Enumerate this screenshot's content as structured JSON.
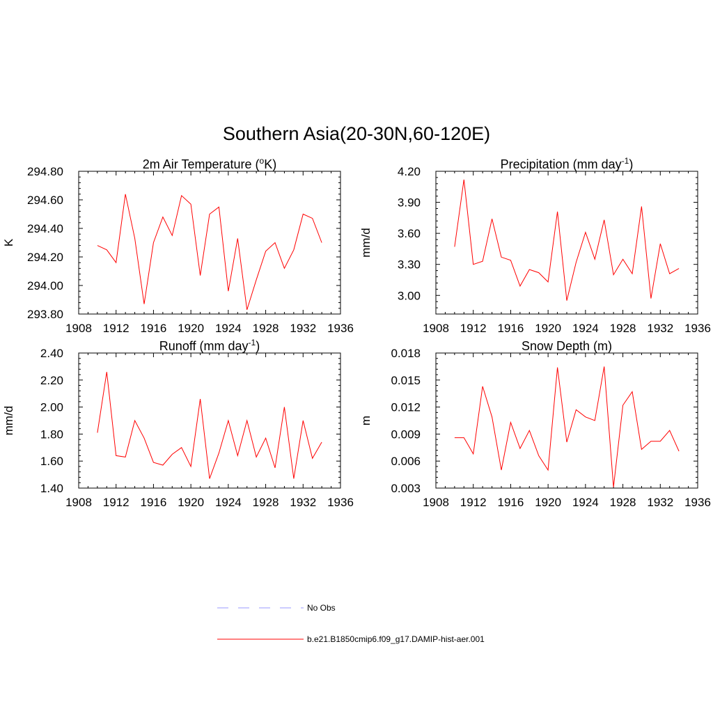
{
  "figure": {
    "title": "Southern Asia(20-30N,60-120E)"
  },
  "legend": {
    "items": [
      {
        "label": "No Obs",
        "color": "#9999ff",
        "style": "dashed"
      },
      {
        "label": "b.e21.B1850cmip6.f09_g17.DAMIP-hist-aer.001",
        "color": "#ff0000",
        "style": "solid"
      }
    ]
  },
  "chart_data": [
    {
      "type": "line",
      "title": "2m Air Temperature (",
      "title_super": "o",
      "title_tail": "K)",
      "ylabel": "K",
      "xlim": [
        1908,
        1936
      ],
      "ylim": [
        293.8,
        294.8
      ],
      "yticks": [
        293.8,
        294.0,
        294.2,
        294.4,
        294.6,
        294.8
      ],
      "ytick_labels": [
        "293.80",
        "294.00",
        "294.20",
        "294.40",
        "294.60",
        "294.80"
      ],
      "xticks": [
        1908,
        1912,
        1916,
        1920,
        1924,
        1928,
        1932,
        1936
      ],
      "xtick_labels": [
        "1908",
        "1912",
        "1916",
        "1920",
        "1924",
        "1928",
        "1932",
        "1936"
      ],
      "x": [
        1910,
        1911,
        1912,
        1913,
        1914,
        1915,
        1916,
        1917,
        1918,
        1919,
        1920,
        1921,
        1922,
        1923,
        1924,
        1925,
        1926,
        1927,
        1928,
        1929,
        1930,
        1931,
        1932,
        1933,
        1934
      ],
      "series": [
        {
          "color": "#ff0000",
          "values": [
            294.28,
            294.25,
            294.16,
            294.64,
            294.33,
            293.87,
            294.3,
            294.48,
            294.35,
            294.63,
            294.57,
            294.07,
            294.5,
            294.55,
            293.96,
            294.33,
            293.83,
            294.04,
            294.24,
            294.3,
            294.12,
            294.25,
            294.5,
            294.47,
            294.3
          ]
        }
      ]
    },
    {
      "type": "line",
      "title": "Precipitation (mm day",
      "title_super": "-1",
      "title_tail": ")",
      "ylabel": "mm/d",
      "xlim": [
        1908,
        1936
      ],
      "ylim": [
        2.82,
        4.2
      ],
      "yticks": [
        3.0,
        3.3,
        3.6,
        3.9,
        4.2
      ],
      "ytick_labels": [
        "3.00",
        "3.30",
        "3.60",
        "3.90",
        "4.20"
      ],
      "xticks": [
        1908,
        1912,
        1916,
        1920,
        1924,
        1928,
        1932,
        1936
      ],
      "xtick_labels": [
        "1908",
        "1912",
        "1916",
        "1920",
        "1924",
        "1928",
        "1932",
        "1936"
      ],
      "x": [
        1910,
        1911,
        1912,
        1913,
        1914,
        1915,
        1916,
        1917,
        1918,
        1919,
        1920,
        1921,
        1922,
        1923,
        1924,
        1925,
        1926,
        1927,
        1928,
        1929,
        1930,
        1931,
        1932,
        1933,
        1934
      ],
      "series": [
        {
          "color": "#ff0000",
          "values": [
            3.47,
            4.12,
            3.3,
            3.33,
            3.74,
            3.37,
            3.34,
            3.09,
            3.25,
            3.22,
            3.13,
            3.81,
            2.95,
            3.32,
            3.61,
            3.35,
            3.73,
            3.2,
            3.35,
            3.21,
            3.86,
            2.97,
            3.5,
            3.21,
            3.26
          ]
        }
      ]
    },
    {
      "type": "line",
      "title": "Runoff (mm day",
      "title_super": "-1",
      "title_tail": ")",
      "ylabel": "mm/d",
      "xlim": [
        1908,
        1936
      ],
      "ylim": [
        1.4,
        2.4
      ],
      "yticks": [
        1.4,
        1.6,
        1.8,
        2.0,
        2.2,
        2.4
      ],
      "ytick_labels": [
        "1.40",
        "1.60",
        "1.80",
        "2.00",
        "2.20",
        "2.40"
      ],
      "xticks": [
        1908,
        1912,
        1916,
        1920,
        1924,
        1928,
        1932,
        1936
      ],
      "xtick_labels": [
        "1908",
        "1912",
        "1916",
        "1920",
        "1924",
        "1928",
        "1932",
        "1936"
      ],
      "x": [
        1910,
        1911,
        1912,
        1913,
        1914,
        1915,
        1916,
        1917,
        1918,
        1919,
        1920,
        1921,
        1922,
        1923,
        1924,
        1925,
        1926,
        1927,
        1928,
        1929,
        1930,
        1931,
        1932,
        1933,
        1934
      ],
      "series": [
        {
          "color": "#ff0000",
          "values": [
            1.81,
            2.26,
            1.64,
            1.63,
            1.9,
            1.77,
            1.59,
            1.57,
            1.65,
            1.7,
            1.56,
            2.06,
            1.47,
            1.66,
            1.9,
            1.64,
            1.9,
            1.63,
            1.77,
            1.55,
            2.0,
            1.47,
            1.9,
            1.62,
            1.74
          ]
        }
      ]
    },
    {
      "type": "line",
      "title": "Snow Depth (m)",
      "title_super": "",
      "title_tail": "",
      "ylabel": "m",
      "xlim": [
        1908,
        1936
      ],
      "ylim": [
        0.003,
        0.018
      ],
      "yticks": [
        0.003,
        0.006,
        0.009,
        0.012,
        0.015,
        0.018
      ],
      "ytick_labels": [
        "0.003",
        "0.006",
        "0.009",
        "0.012",
        "0.015",
        "0.018"
      ],
      "xticks": [
        1908,
        1912,
        1916,
        1920,
        1924,
        1928,
        1932,
        1936
      ],
      "xtick_labels": [
        "1908",
        "1912",
        "1916",
        "1920",
        "1924",
        "1928",
        "1932",
        "1936"
      ],
      "x": [
        1910,
        1911,
        1912,
        1913,
        1914,
        1915,
        1916,
        1917,
        1918,
        1919,
        1920,
        1921,
        1922,
        1923,
        1924,
        1925,
        1926,
        1927,
        1928,
        1929,
        1930,
        1931,
        1932,
        1933,
        1934
      ],
      "series": [
        {
          "color": "#ff0000",
          "values": [
            0.0086,
            0.0086,
            0.0068,
            0.0143,
            0.0109,
            0.005,
            0.0103,
            0.0074,
            0.0094,
            0.0066,
            0.005,
            0.0164,
            0.0081,
            0.0117,
            0.0109,
            0.0105,
            0.0165,
            0.0031,
            0.0122,
            0.0137,
            0.0073,
            0.0082,
            0.0082,
            0.0094,
            0.0071
          ]
        }
      ]
    }
  ]
}
